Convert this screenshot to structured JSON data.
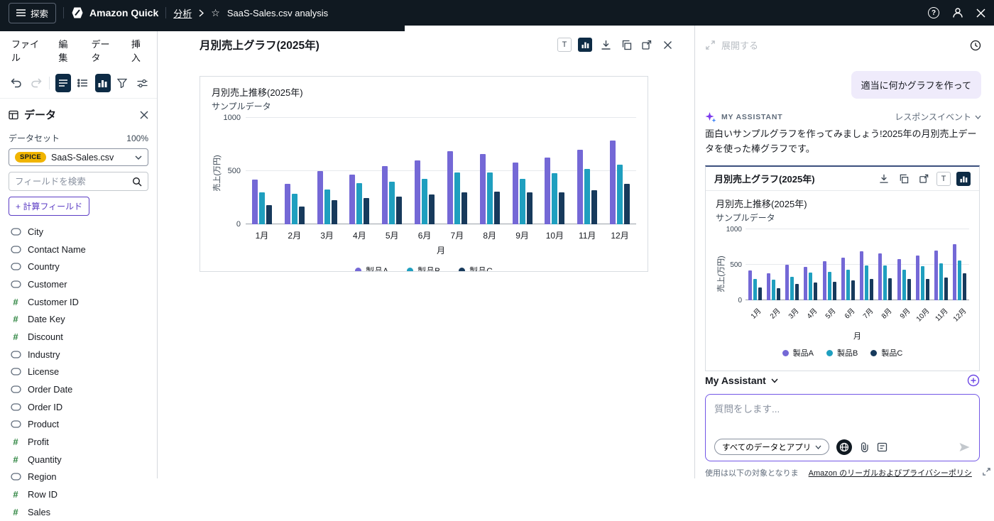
{
  "topbar": {
    "explore_label": "探索",
    "brand": "Amazon Quick",
    "breadcrumb_analysis": "分析",
    "title": "SaaS-Sales.csv analysis"
  },
  "menubar": {
    "items": [
      "ファイル",
      "編集",
      "データ",
      "挿入"
    ]
  },
  "sidebar": {
    "title": "データ",
    "dataset_label": "データセット",
    "dataset_progress": "100%",
    "spice_badge": "SPICE",
    "dataset_name": "SaaS-Sales.csv",
    "search_placeholder": "フィールドを検索",
    "calculated_field_label": "+ 計算フィールド",
    "fields": [
      {
        "name": "City",
        "type": "string"
      },
      {
        "name": "Contact Name",
        "type": "string"
      },
      {
        "name": "Country",
        "type": "string"
      },
      {
        "name": "Customer",
        "type": "string"
      },
      {
        "name": "Customer ID",
        "type": "number"
      },
      {
        "name": "Date Key",
        "type": "number"
      },
      {
        "name": "Discount",
        "type": "number"
      },
      {
        "name": "Industry",
        "type": "string"
      },
      {
        "name": "License",
        "type": "string"
      },
      {
        "name": "Order Date",
        "type": "string"
      },
      {
        "name": "Order ID",
        "type": "string"
      },
      {
        "name": "Product",
        "type": "string"
      },
      {
        "name": "Profit",
        "type": "number"
      },
      {
        "name": "Quantity",
        "type": "number"
      },
      {
        "name": "Region",
        "type": "string"
      },
      {
        "name": "Row ID",
        "type": "number"
      },
      {
        "name": "Sales",
        "type": "number"
      }
    ]
  },
  "visual": {
    "title": "月別売上グラフ(2025年)",
    "format_button": "T"
  },
  "assistant": {
    "expand_label": "展開する",
    "user_message": "適当に何かグラフを作って",
    "assistant_label": "MY ASSISTANT",
    "response_event_label": "レスポンスイベント",
    "message": "面白いサンプルグラフを作ってみましょう!2025年の月別売上データを使った棒グラフです。",
    "card_title": "月別売上グラフ(2025年)",
    "format_button": "T",
    "selector_label": "My Assistant",
    "input_placeholder": "質問をします...",
    "scope_pill": "すべてのデータとアプリ",
    "footer_text": "使用は以下の対象となりま",
    "footer_link": "Amazon のリーガルおよびプライバシーポリシ"
  },
  "chart_data": {
    "type": "bar",
    "title": "月別売上推移(2025年)",
    "subtitle": "サンプルデータ",
    "categories": [
      "1月",
      "2月",
      "3月",
      "4月",
      "5月",
      "6月",
      "7月",
      "8月",
      "9月",
      "10月",
      "11月",
      "12月"
    ],
    "series": [
      {
        "name": "製品A",
        "color": "#7468d6",
        "values": [
          420,
          380,
          500,
          470,
          550,
          600,
          690,
          660,
          580,
          630,
          700,
          790
        ]
      },
      {
        "name": "製品B",
        "color": "#1f9fbf",
        "values": [
          300,
          290,
          330,
          390,
          400,
          430,
          490,
          490,
          430,
          480,
          520,
          560
        ]
      },
      {
        "name": "製品C",
        "color": "#173a5c",
        "values": [
          180,
          170,
          230,
          250,
          260,
          280,
          300,
          310,
          300,
          300,
          320,
          380
        ]
      }
    ],
    "xlabel": "月",
    "ylabel": "売上(万円)",
    "ylim": [
      0,
      1000
    ],
    "yticks": [
      0,
      500,
      1000
    ],
    "legend_position": "bottom",
    "grid": true
  }
}
